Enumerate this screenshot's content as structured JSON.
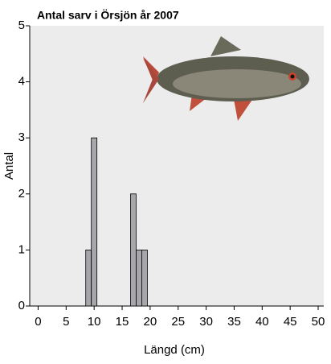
{
  "chart_data": {
    "type": "histogram",
    "title": "Antal sarv i Örsjön år 2007",
    "xlabel": "Längd (cm)",
    "ylabel": "Antal",
    "bins": [
      8.5,
      9.5,
      10.5,
      11.5,
      12.5,
      13.5,
      14.5,
      15.5,
      16.5,
      17.5,
      18.5,
      19.5
    ],
    "counts": [
      1,
      3,
      0,
      0,
      0,
      0,
      0,
      0,
      2,
      1,
      1
    ],
    "color": "#a6a6ab",
    "xlim": [
      -1.5,
      51
    ],
    "xticks": [
      0,
      5,
      10,
      15,
      20,
      25,
      30,
      35,
      40,
      45,
      50
    ],
    "ylim": [
      0,
      5
    ],
    "yticks": [
      0,
      1,
      2,
      3,
      4,
      5
    ]
  }
}
